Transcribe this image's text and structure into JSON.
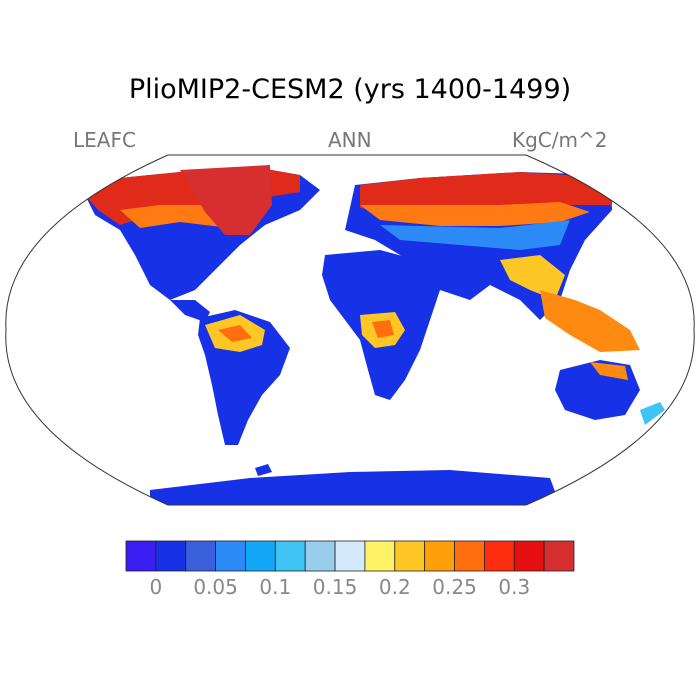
{
  "title": "PlioMIP2-CESM2 (yrs 1400-1499)",
  "variable": "LEAFC",
  "season": "ANN",
  "units": "KgC/m^2",
  "colorbar": {
    "colors": [
      "#3b1ff2",
      "#1732e6",
      "#3a5fdc",
      "#2b8af5",
      "#12a8f5",
      "#3ec4f5",
      "#98cdec",
      "#d2eafb",
      "#fff266",
      "#ffc726",
      "#ffa00a",
      "#ff6e0f",
      "#ff2d0f",
      "#e50f0f",
      "#d72f2f"
    ],
    "tick_labels": [
      "0",
      "0.05",
      "0.1",
      "0.15",
      "0.2",
      "0.25",
      "0.3"
    ]
  },
  "map": {
    "projection": "Robinson",
    "land_color_low": "#1732e6",
    "high_latitude_color": "#e02a1a"
  }
}
